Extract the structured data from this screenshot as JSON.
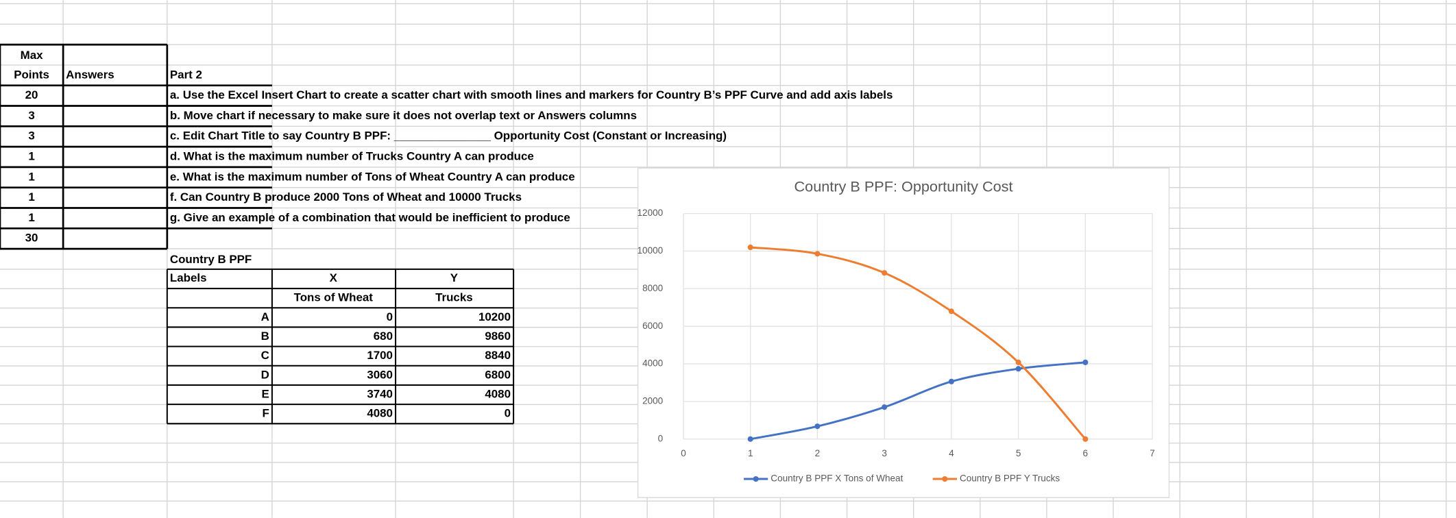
{
  "sheet": {
    "header": {
      "max": "Max",
      "points": "Points",
      "answers": "Answers",
      "part": "Part 2"
    },
    "rows": [
      {
        "points": "20",
        "task": "a. Use the Excel Insert Chart to create a scatter chart with smooth lines and markers for Country B’s PPF Curve and add axis labels"
      },
      {
        "points": "3",
        "task": "b. Move chart if necessary to make sure it does not overlap text or Answers columns"
      },
      {
        "points": "3",
        "task": "c. Edit Chart Title to say Country B PPF: _______________ Opportunity Cost (Constant or Increasing)"
      },
      {
        "points": "1",
        "task": "d. What is the maximum number of Trucks Country A can produce"
      },
      {
        "points": "1",
        "task": "e. What is the maximum number of Tons of Wheat Country A can produce"
      },
      {
        "points": "1",
        "task": "f.  Can Country B produce 2000 Tons of Wheat and 10000 Trucks"
      },
      {
        "points": "1",
        "task": "g. Give an example of a combination that would be inefficient to produce"
      }
    ],
    "total": "30",
    "ppf_table": {
      "title": "Country B PPF",
      "headers": [
        "Labels",
        "X",
        "Y"
      ],
      "subheaders": [
        "Tons of Wheat",
        "Trucks"
      ],
      "rows": [
        [
          "A",
          "0",
          "10200"
        ],
        [
          "B",
          "680",
          "9860"
        ],
        [
          "C",
          "1700",
          "8840"
        ],
        [
          "D",
          "3060",
          "6800"
        ],
        [
          "E",
          "3740",
          "4080"
        ],
        [
          "F",
          "4080",
          "0"
        ]
      ]
    }
  },
  "chart_data": {
    "type": "scatter",
    "title": "Country B PPF: Opportunity Cost",
    "x": [
      1,
      2,
      3,
      4,
      5,
      6
    ],
    "series": [
      {
        "name": "Country B PPF X Tons of Wheat",
        "color": "#4472c4",
        "values": [
          0,
          680,
          1700,
          3060,
          3740,
          4080
        ]
      },
      {
        "name": "Country B PPF Y Trucks",
        "color": "#ed7d31",
        "values": [
          10200,
          9860,
          8840,
          6800,
          4080,
          0
        ]
      }
    ],
    "xlim": [
      0,
      7
    ],
    "xticks": [
      0,
      1,
      2,
      3,
      4,
      5,
      6,
      7
    ],
    "ylim": [
      0,
      12000
    ],
    "yticks": [
      0,
      2000,
      4000,
      6000,
      8000,
      10000,
      12000
    ],
    "grid": true,
    "legend": "bottom"
  }
}
